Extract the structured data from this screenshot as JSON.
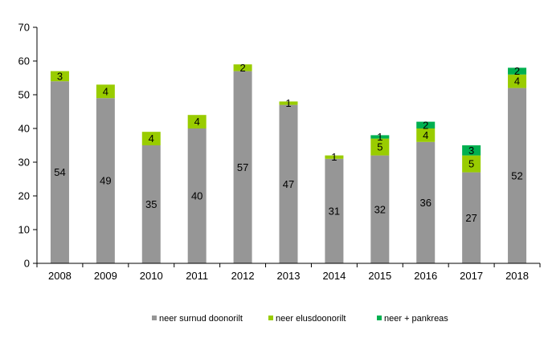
{
  "chart_data": {
    "type": "bar",
    "stacked": true,
    "categories": [
      "2008",
      "2009",
      "2010",
      "2011",
      "2012",
      "2013",
      "2014",
      "2015",
      "2016",
      "2017",
      "2018"
    ],
    "series": [
      {
        "name": "neer surnud doonorilt",
        "color": "#969696",
        "values": [
          54,
          49,
          35,
          40,
          57,
          47,
          31,
          32,
          36,
          27,
          52
        ]
      },
      {
        "name": "neer elusdoonorilt",
        "color": "#99cc00",
        "values": [
          3,
          4,
          4,
          4,
          2,
          1,
          1,
          5,
          4,
          5,
          4
        ]
      },
      {
        "name": "neer + pankreas",
        "color": "#00b050",
        "values": [
          0,
          0,
          0,
          0,
          0,
          0,
          0,
          1,
          2,
          3,
          2
        ]
      }
    ],
    "ylim": [
      0,
      70
    ],
    "yticks": [
      0,
      10,
      20,
      30,
      40,
      50,
      60,
      70
    ],
    "grid": false,
    "legend_position": "bottom"
  }
}
